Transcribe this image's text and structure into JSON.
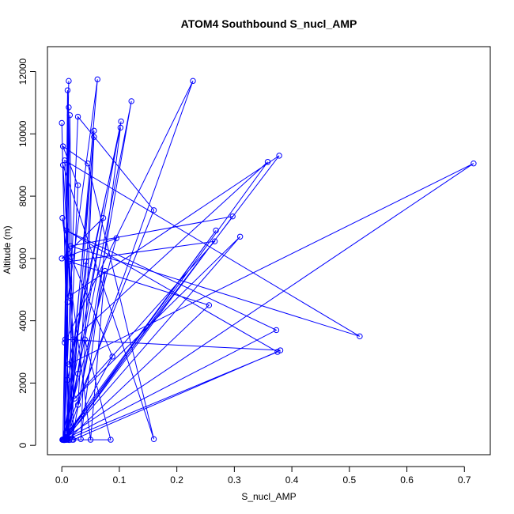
{
  "chart_data": {
    "type": "line",
    "title": "ATOM4 Southbound S_nucl_AMP",
    "xlabel": "S_nucl_AMP",
    "ylabel": "Altitude (m)",
    "xlim": [
      -0.025,
      0.745
    ],
    "ylim": [
      -300,
      12800
    ],
    "x_ticks": [
      0.0,
      0.1,
      0.2,
      0.3,
      0.4,
      0.5,
      0.6,
      0.7
    ],
    "x_tick_labels": [
      "0.0",
      "0.1",
      "0.2",
      "0.3",
      "0.4",
      "0.5",
      "0.6",
      "0.7"
    ],
    "y_ticks": [
      0,
      2000,
      4000,
      6000,
      8000,
      10000,
      12000
    ],
    "y_tick_labels": [
      "0",
      "2000",
      "4000",
      "6000",
      "8000",
      "10000",
      "12000"
    ],
    "grid": false,
    "series_color": "#0000ff",
    "marker": "open-circle",
    "points": [
      {
        "x": 0.002,
        "y": 180
      },
      {
        "x": 0.012,
        "y": 11700
      },
      {
        "x": 0.005,
        "y": 3300
      },
      {
        "x": 0.228,
        "y": 11700
      },
      {
        "x": 0.008,
        "y": 220
      },
      {
        "x": 0.062,
        "y": 11750
      },
      {
        "x": 0.01,
        "y": 4600
      },
      {
        "x": 0.004,
        "y": 170
      },
      {
        "x": 0.01,
        "y": 11400
      },
      {
        "x": 0.018,
        "y": 180
      },
      {
        "x": 0.121,
        "y": 11050
      },
      {
        "x": 0.028,
        "y": 2300
      },
      {
        "x": 0.009,
        "y": 180
      },
      {
        "x": 0.012,
        "y": 10850
      },
      {
        "x": 0.006,
        "y": 3400
      },
      {
        "x": 0.38,
        "y": 3050
      },
      {
        "x": 0.02,
        "y": 180
      },
      {
        "x": 0.014,
        "y": 10600
      },
      {
        "x": 0.004,
        "y": 180
      },
      {
        "x": 0.028,
        "y": 10550
      },
      {
        "x": 0.16,
        "y": 7550
      },
      {
        "x": 0.001,
        "y": 180
      },
      {
        "x": 0.103,
        "y": 10400
      },
      {
        "x": 0.01,
        "y": 2100
      },
      {
        "x": 0.0,
        "y": 10350
      },
      {
        "x": 0.013,
        "y": 170
      },
      {
        "x": 0.056,
        "y": 10100
      },
      {
        "x": 0.033,
        "y": 200
      },
      {
        "x": 0.102,
        "y": 10200
      },
      {
        "x": 0.012,
        "y": 2600
      },
      {
        "x": 0.716,
        "y": 9050
      },
      {
        "x": 0.002,
        "y": 190
      },
      {
        "x": 0.378,
        "y": 9300
      },
      {
        "x": 0.014,
        "y": 4800
      },
      {
        "x": 0.005,
        "y": 9150
      },
      {
        "x": 0.518,
        "y": 3500
      },
      {
        "x": 0.015,
        "y": 6400
      },
      {
        "x": 0.297,
        "y": 7350
      },
      {
        "x": 0.007,
        "y": 180
      },
      {
        "x": 0.358,
        "y": 9100
      },
      {
        "x": 0.02,
        "y": 3400
      },
      {
        "x": 0.002,
        "y": 9000
      },
      {
        "x": 0.16,
        "y": 200
      },
      {
        "x": 0.045,
        "y": 9050
      },
      {
        "x": 0.002,
        "y": 9600
      },
      {
        "x": 0.028,
        "y": 8350
      },
      {
        "x": 0.008,
        "y": 190
      },
      {
        "x": 0.072,
        "y": 7300
      },
      {
        "x": 0.0,
        "y": 6000
      },
      {
        "x": 0.095,
        "y": 6650
      },
      {
        "x": 0.001,
        "y": 180
      },
      {
        "x": 0.268,
        "y": 6900
      },
      {
        "x": 0.005,
        "y": 200
      },
      {
        "x": 0.31,
        "y": 6700
      },
      {
        "x": 0.022,
        "y": 1500
      },
      {
        "x": 0.266,
        "y": 6550
      },
      {
        "x": 0.013,
        "y": 5900
      },
      {
        "x": 0.256,
        "y": 4500
      },
      {
        "x": 0.01,
        "y": 180
      },
      {
        "x": 0.085,
        "y": 180
      },
      {
        "x": 0.04,
        "y": 3400
      },
      {
        "x": 0.003,
        "y": 170
      },
      {
        "x": 0.373,
        "y": 3700
      },
      {
        "x": 0.008,
        "y": 6900
      },
      {
        "x": 0.375,
        "y": 3000
      },
      {
        "x": 0.01,
        "y": 200
      },
      {
        "x": 0.088,
        "y": 2850
      },
      {
        "x": 0.016,
        "y": 6050
      },
      {
        "x": 0.001,
        "y": 7300
      },
      {
        "x": 0.05,
        "y": 180
      },
      {
        "x": 0.075,
        "y": 5600
      },
      {
        "x": 0.028,
        "y": 1300
      },
      {
        "x": 0.056,
        "y": 9900
      },
      {
        "x": 0.005,
        "y": 170
      },
      {
        "x": 0.042,
        "y": 5900
      },
      {
        "x": 0.008,
        "y": 180
      }
    ]
  }
}
